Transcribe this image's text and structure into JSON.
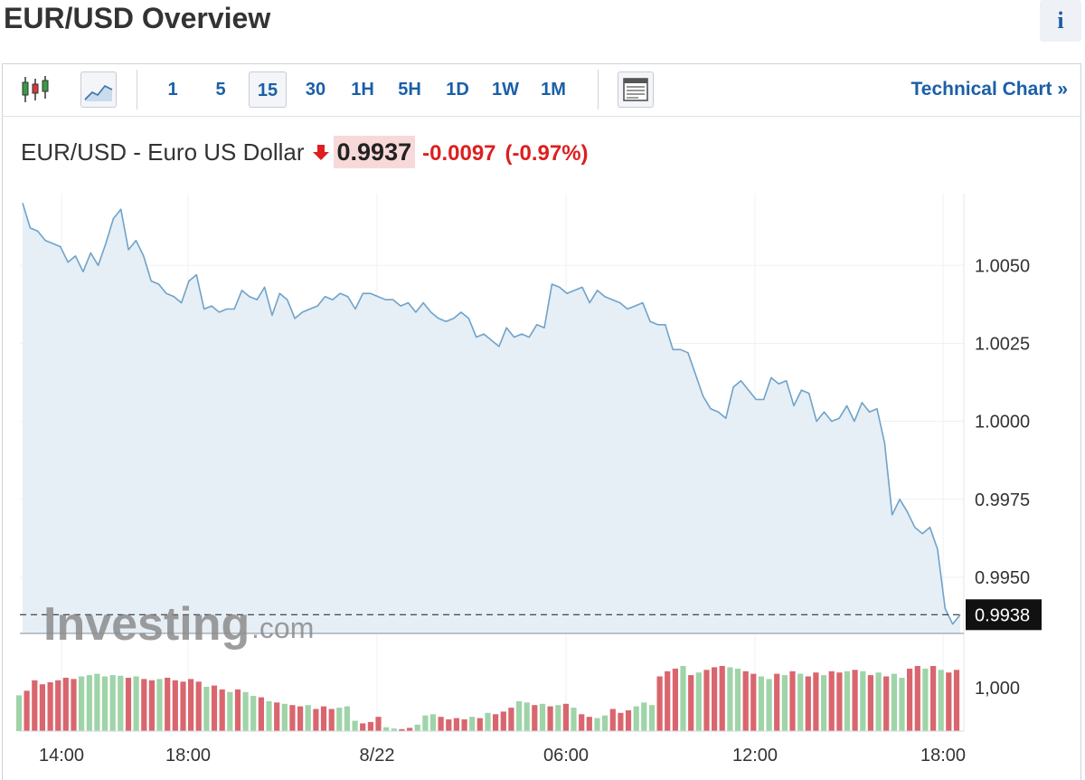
{
  "header": {
    "title": "EUR/USD Overview",
    "info_label": "i"
  },
  "toolbar": {
    "intervals": [
      "1",
      "5",
      "15",
      "30",
      "1H",
      "5H",
      "1D",
      "1W",
      "1M"
    ],
    "active_interval": "15",
    "technical_chart_label": "Technical Chart »"
  },
  "quote": {
    "name": "EUR/USD - Euro US Dollar",
    "price": "0.9937",
    "change": "-0.0097",
    "change_pct": "(-0.97%)",
    "direction": "down",
    "down_color": "#dd1f1f"
  },
  "watermark": {
    "brand": "Investing",
    "suffix": ".com"
  },
  "chart_data": {
    "type": "area",
    "xlabel": "",
    "ylabel": "",
    "x_tick_labels": [
      "14:00",
      "18:00",
      "8/22",
      "06:00",
      "12:00",
      "18:00"
    ],
    "y_tick_labels": [
      "1.0050",
      "1.0025",
      "1.0000",
      "0.9975",
      "0.9950"
    ],
    "y_ticks": [
      1.005,
      1.0025,
      1.0,
      0.9975,
      0.995
    ],
    "ylim": [
      0.9932,
      1.0073
    ],
    "last_value_label": "0.9938",
    "last_value": 0.9938,
    "grid": true,
    "line_color": "#6fa3c9",
    "fill_color": "#e6eef6",
    "values": [
      1.007,
      1.0062,
      1.0061,
      1.0058,
      1.0057,
      1.0056,
      1.0051,
      1.0053,
      1.0048,
      1.0054,
      1.005,
      1.0057,
      1.0065,
      1.0068,
      1.0055,
      1.0058,
      1.0053,
      1.0045,
      1.0044,
      1.0041,
      1.004,
      1.0038,
      1.0045,
      1.0047,
      1.0036,
      1.0037,
      1.0035,
      1.0036,
      1.0036,
      1.0042,
      1.004,
      1.0039,
      1.0043,
      1.0034,
      1.0041,
      1.0039,
      1.0033,
      1.0035,
      1.0036,
      1.0037,
      1.004,
      1.0039,
      1.0041,
      1.004,
      1.0036,
      1.0041,
      1.0041,
      1.004,
      1.0039,
      1.0039,
      1.0037,
      1.0038,
      1.0035,
      1.0038,
      1.0035,
      1.0033,
      1.0032,
      1.0033,
      1.0035,
      1.0033,
      1.0027,
      1.0028,
      1.0026,
      1.0024,
      1.003,
      1.0027,
      1.0028,
      1.0027,
      1.0031,
      1.003,
      1.0044,
      1.0043,
      1.0041,
      1.0042,
      1.0043,
      1.0038,
      1.0042,
      1.004,
      1.0039,
      1.0038,
      1.0036,
      1.0037,
      1.0038,
      1.0032,
      1.0031,
      1.0031,
      1.0023,
      1.0023,
      1.0022,
      1.0015,
      1.0008,
      1.0004,
      1.0003,
      1.0001,
      1.0011,
      1.0013,
      1.001,
      1.0007,
      1.0007,
      1.0014,
      1.0012,
      1.0013,
      1.0005,
      1.001,
      1.0009,
      1.0,
      1.0003,
      1.0,
      1.0001,
      1.0005,
      1.0,
      1.0006,
      1.0003,
      1.0004,
      0.9993,
      0.997,
      0.9975,
      0.9971,
      0.9966,
      0.9964,
      0.9966,
      0.9959,
      0.994,
      0.9935,
      0.9938
    ],
    "volume_label": "1,000",
    "volume_up_color": "#9fd4a8",
    "volume_down_color": "#d9666e",
    "volume": [
      [
        0.55,
        1
      ],
      [
        0.62,
        0
      ],
      [
        0.78,
        0
      ],
      [
        0.72,
        0
      ],
      [
        0.75,
        0
      ],
      [
        0.78,
        0
      ],
      [
        0.82,
        0
      ],
      [
        0.8,
        0
      ],
      [
        0.84,
        1
      ],
      [
        0.86,
        1
      ],
      [
        0.88,
        1
      ],
      [
        0.84,
        1
      ],
      [
        0.86,
        1
      ],
      [
        0.85,
        1
      ],
      [
        0.82,
        0
      ],
      [
        0.84,
        1
      ],
      [
        0.8,
        0
      ],
      [
        0.78,
        0
      ],
      [
        0.8,
        1
      ],
      [
        0.82,
        0
      ],
      [
        0.78,
        0
      ],
      [
        0.76,
        0
      ],
      [
        0.8,
        0
      ],
      [
        0.76,
        0
      ],
      [
        0.68,
        1
      ],
      [
        0.7,
        0
      ],
      [
        0.64,
        0
      ],
      [
        0.6,
        1
      ],
      [
        0.64,
        0
      ],
      [
        0.6,
        1
      ],
      [
        0.54,
        1
      ],
      [
        0.52,
        0
      ],
      [
        0.46,
        1
      ],
      [
        0.44,
        0
      ],
      [
        0.42,
        1
      ],
      [
        0.4,
        0
      ],
      [
        0.38,
        0
      ],
      [
        0.4,
        1
      ],
      [
        0.34,
        0
      ],
      [
        0.38,
        0
      ],
      [
        0.34,
        0
      ],
      [
        0.36,
        1
      ],
      [
        0.38,
        1
      ],
      [
        0.16,
        1
      ],
      [
        0.12,
        0
      ],
      [
        0.14,
        0
      ],
      [
        0.22,
        0
      ],
      [
        0.06,
        1
      ],
      [
        0.04,
        1
      ],
      [
        0.03,
        0
      ],
      [
        0.05,
        0
      ],
      [
        0.1,
        1
      ],
      [
        0.24,
        1
      ],
      [
        0.26,
        1
      ],
      [
        0.22,
        0
      ],
      [
        0.18,
        0
      ],
      [
        0.2,
        0
      ],
      [
        0.18,
        0
      ],
      [
        0.22,
        1
      ],
      [
        0.2,
        0
      ],
      [
        0.28,
        1
      ],
      [
        0.26,
        0
      ],
      [
        0.3,
        0
      ],
      [
        0.36,
        0
      ],
      [
        0.46,
        1
      ],
      [
        0.44,
        1
      ],
      [
        0.4,
        0
      ],
      [
        0.42,
        1
      ],
      [
        0.38,
        0
      ],
      [
        0.4,
        1
      ],
      [
        0.42,
        0
      ],
      [
        0.36,
        1
      ],
      [
        0.26,
        0
      ],
      [
        0.22,
        0
      ],
      [
        0.2,
        1
      ],
      [
        0.24,
        1
      ],
      [
        0.34,
        0
      ],
      [
        0.28,
        0
      ],
      [
        0.32,
        0
      ],
      [
        0.38,
        1
      ],
      [
        0.44,
        1
      ],
      [
        0.4,
        1
      ],
      [
        0.84,
        0
      ],
      [
        0.92,
        0
      ],
      [
        0.96,
        0
      ],
      [
        1.0,
        1
      ],
      [
        0.86,
        0
      ],
      [
        0.9,
        1
      ],
      [
        0.94,
        0
      ],
      [
        0.98,
        0
      ],
      [
        1.0,
        0
      ],
      [
        0.98,
        1
      ],
      [
        0.96,
        1
      ],
      [
        0.92,
        0
      ],
      [
        0.88,
        0
      ],
      [
        0.84,
        1
      ],
      [
        0.8,
        1
      ],
      [
        0.88,
        0
      ],
      [
        0.86,
        1
      ],
      [
        0.92,
        0
      ],
      [
        0.88,
        1
      ],
      [
        0.84,
        0
      ],
      [
        0.9,
        0
      ],
      [
        0.86,
        1
      ],
      [
        0.92,
        0
      ],
      [
        0.9,
        0
      ],
      [
        0.92,
        1
      ],
      [
        0.94,
        0
      ],
      [
        0.92,
        1
      ],
      [
        0.86,
        0
      ],
      [
        0.9,
        1
      ],
      [
        0.84,
        0
      ],
      [
        0.88,
        1
      ],
      [
        0.82,
        1
      ],
      [
        0.96,
        0
      ],
      [
        1.0,
        0
      ],
      [
        0.96,
        1
      ],
      [
        1.0,
        0
      ],
      [
        0.94,
        1
      ],
      [
        0.9,
        0
      ],
      [
        0.94,
        0
      ]
    ]
  }
}
